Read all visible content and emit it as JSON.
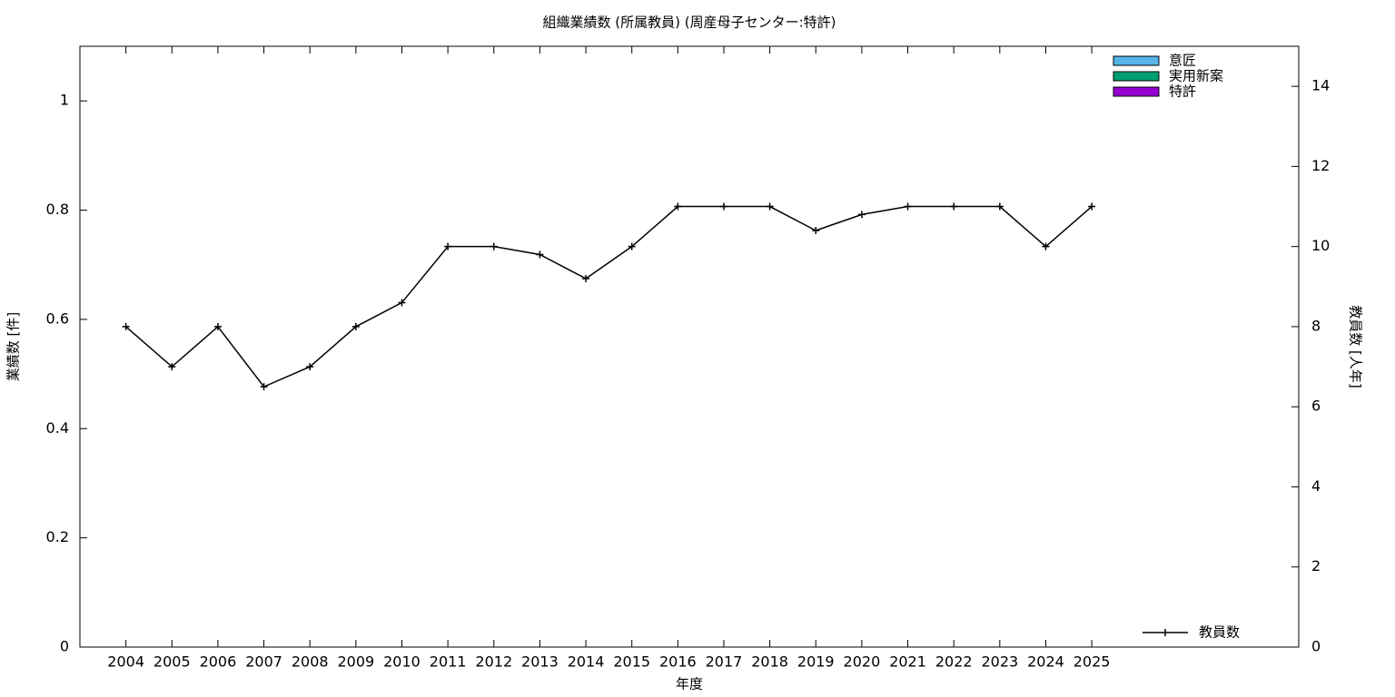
{
  "chart_data": {
    "type": "bar+line",
    "title": "組織業績数 (所属教員) (周産母子センター:特許)",
    "x_label": "年度",
    "y_label": "業績数 [件]",
    "y2_label": "教員数 [人年]",
    "categories": [
      "2004",
      "2005",
      "2006",
      "2007",
      "2008",
      "2009",
      "2010",
      "2011",
      "2012",
      "2013",
      "2014",
      "2015",
      "2016",
      "2017",
      "2018",
      "2019",
      "2020",
      "2021",
      "2022",
      "2023",
      "2024",
      "2025"
    ],
    "series": [
      {
        "name": "意匠",
        "color": "#56b4e9",
        "type": "bar",
        "values": [
          0,
          0,
          0,
          0,
          0,
          0,
          0,
          0,
          0,
          0,
          0,
          0,
          0,
          0,
          0,
          0,
          0,
          0,
          0,
          0,
          0,
          0
        ]
      },
      {
        "name": "実用新案",
        "color": "#009e73",
        "type": "bar",
        "values": [
          0,
          0,
          0,
          0,
          0,
          0,
          0,
          0,
          0,
          0,
          0,
          0,
          0,
          0,
          0,
          0,
          0,
          0,
          0,
          0,
          0,
          0
        ]
      },
      {
        "name": "特許",
        "color": "#9400d3",
        "type": "bar",
        "values": [
          0,
          0,
          0,
          0,
          0,
          0,
          0,
          0,
          0,
          0,
          0,
          0,
          0,
          0,
          0,
          0,
          0,
          0,
          0,
          0,
          0,
          0
        ]
      },
      {
        "name": "教員数",
        "color": "#000000",
        "type": "line",
        "axis": "y2",
        "values": [
          8,
          7,
          8,
          6.5,
          7,
          8,
          8.6,
          10,
          10,
          9.8,
          9.2,
          10,
          11,
          11,
          11,
          10.4,
          10.8,
          11,
          11,
          11,
          10,
          11
        ]
      }
    ],
    "ylim": [
      0,
      1.1
    ],
    "yticks": [
      0,
      0.2,
      0.4,
      0.6,
      0.8,
      1
    ],
    "y2lim": [
      0,
      15
    ],
    "y2ticks": [
      0,
      2,
      4,
      6,
      8,
      10,
      12,
      14
    ],
    "stacked": true,
    "bar_legend": "top-right",
    "line_legend": "bottom-right"
  }
}
